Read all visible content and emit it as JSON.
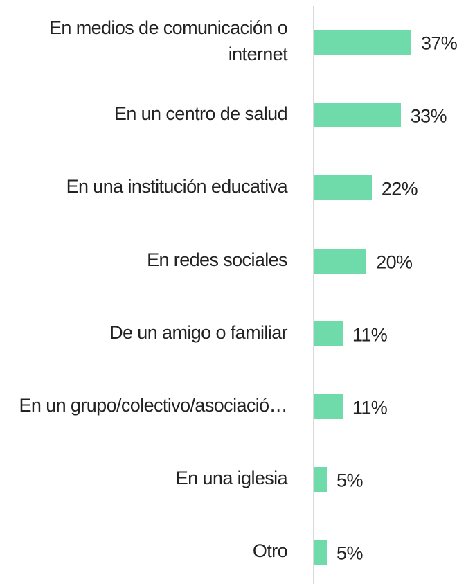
{
  "chart_data": {
    "type": "bar",
    "orientation": "horizontal",
    "categories": [
      "En medios de comunicación o internet",
      "En un centro de salud",
      "En una institución educativa",
      "En redes sociales",
      "De un amigo o familiar",
      "En un grupo/colectivo/asociació…",
      "En una iglesia",
      "Otro"
    ],
    "values": [
      37,
      33,
      22,
      20,
      11,
      11,
      5,
      5
    ],
    "value_labels": [
      "37%",
      "33%",
      "22%",
      "20%",
      "11%",
      "11%",
      "5%",
      "5%"
    ],
    "color": "#6fdaaa"
  }
}
